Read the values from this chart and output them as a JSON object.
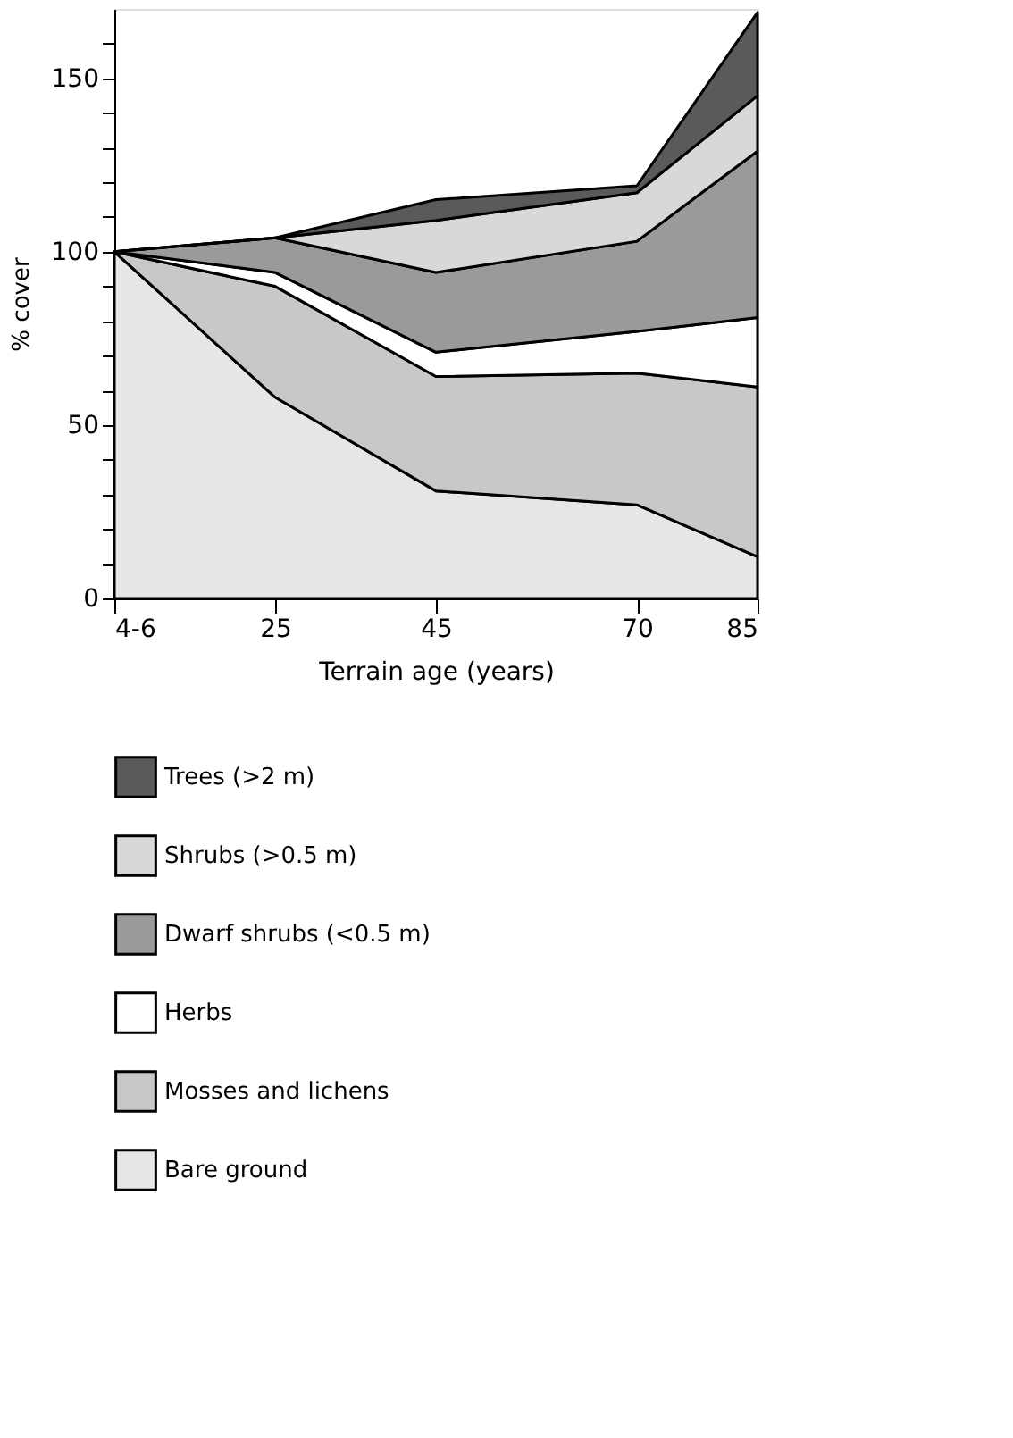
{
  "chart_data": {
    "type": "area",
    "stacked": true,
    "xlabel": "Terrain age (years)",
    "ylabel": "% cover",
    "x": [
      5,
      25,
      45,
      70,
      85
    ],
    "xlim": [
      5,
      85
    ],
    "xticks": [
      {
        "value": 5,
        "label": "4-6"
      },
      25,
      45,
      70,
      85
    ],
    "ylim": [
      0,
      170
    ],
    "yticks": [
      0,
      {
        "value": 10,
        "label": null
      },
      {
        "value": 20,
        "label": null
      },
      {
        "value": 30,
        "label": null
      },
      {
        "value": 40,
        "label": null
      },
      50,
      {
        "value": 60,
        "label": null
      },
      {
        "value": 70,
        "label": null
      },
      {
        "value": 80,
        "label": null
      },
      {
        "value": 90,
        "label": null
      },
      100,
      {
        "value": 110,
        "label": null
      },
      {
        "value": 120,
        "label": null
      },
      {
        "value": 130,
        "label": null
      },
      {
        "value": 140,
        "label": null
      },
      150,
      {
        "value": 160,
        "label": null
      }
    ],
    "grid": false,
    "legend": "bottom",
    "series": [
      {
        "name": "Bare ground",
        "color": "#e6e6e6",
        "values": [
          100,
          58,
          31,
          27,
          12
        ]
      },
      {
        "name": "Mosses and lichens",
        "color": "#c8c8c8",
        "values": [
          0,
          32,
          33,
          38,
          49
        ]
      },
      {
        "name": "Herbs",
        "color": "#ffffff",
        "values": [
          0,
          4,
          7,
          12,
          20
        ]
      },
      {
        "name": "Dwarf shrubs (<0.5 m)",
        "color": "#9a9a9a",
        "values": [
          0,
          10,
          23,
          26,
          48
        ]
      },
      {
        "name": "Shrubs (>0.5 m)",
        "color": "#d8d8d8",
        "values": [
          0,
          0,
          15,
          14,
          16
        ]
      },
      {
        "name": "Trees (>2 m)",
        "color": "#5a5a5a",
        "values": [
          0,
          0,
          6,
          2,
          24
        ]
      }
    ]
  }
}
